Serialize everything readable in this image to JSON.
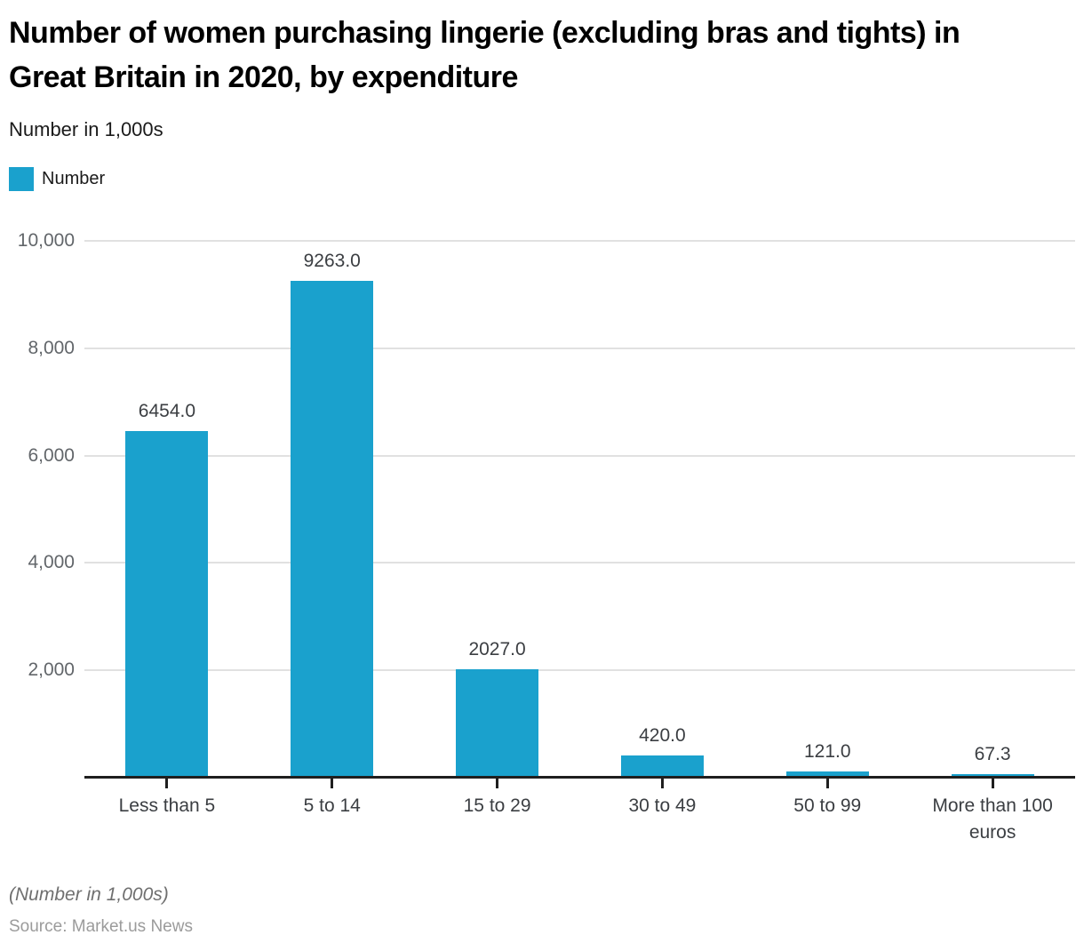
{
  "header": {
    "title": "Number of women purchasing lingerie (excluding bras and tights) in Great Britain in 2020, by expenditure",
    "subtitle": "Number in 1,000s"
  },
  "legend": {
    "label": "Number"
  },
  "chart_data": {
    "type": "bar",
    "title": "Number of women purchasing lingerie (excluding bras and tights) in Great Britain in 2020, by expenditure",
    "subtitle": "Number in 1,000s",
    "categories": [
      "Less than 5",
      "5 to 14",
      "15 to 29",
      "30 to 49",
      "50 to 99",
      "More than 100 euros"
    ],
    "series": [
      {
        "name": "Number",
        "values": [
          6454.0,
          9263.0,
          2027.0,
          420.0,
          121.0,
          67.3
        ]
      }
    ],
    "value_labels": [
      "6454.0",
      "9263.0",
      "2027.0",
      "420.0",
      "121.0",
      "67.3"
    ],
    "xlabel": "",
    "ylabel": "Number in 1,000s",
    "ylim": [
      0,
      10000
    ],
    "yticks": [
      2000,
      4000,
      6000,
      8000,
      10000
    ],
    "ytick_labels": [
      "2,000",
      "4,000",
      "6,000",
      "8,000",
      "10,000"
    ],
    "grid": true,
    "legend_position": "top-left",
    "bar_color": "#1aa1cd"
  },
  "colors": {
    "bar": "#1aa1cd",
    "gridline": "#e1e1e1",
    "axis": "#1f1f1f",
    "value_label": "#3b3e42",
    "y_tick_label": "#62666a",
    "x_axis_label": "#3b3e42"
  },
  "footer": {
    "note": "(Number in 1,000s)",
    "source": "Source: Market.us News"
  }
}
